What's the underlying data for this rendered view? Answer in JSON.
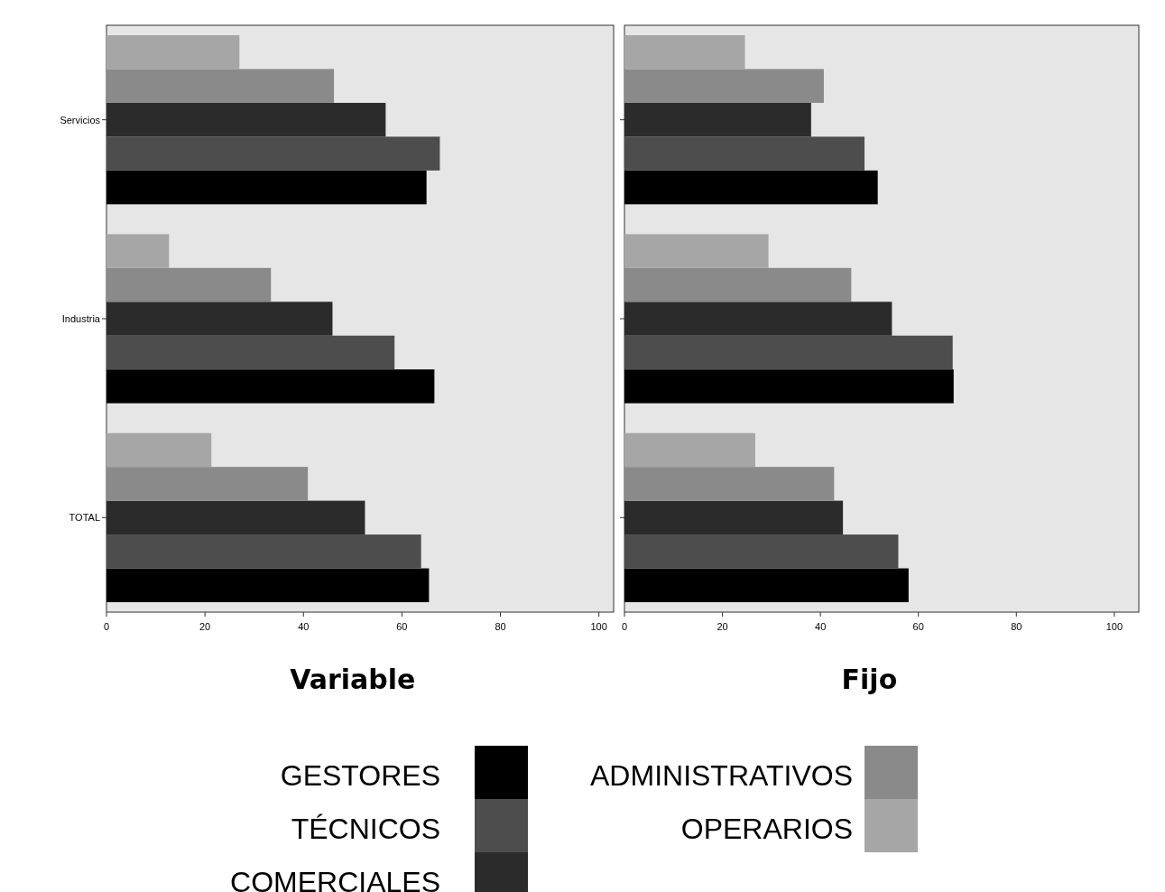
{
  "chart_data": [
    {
      "type": "bar",
      "orientation": "horizontal",
      "xlabel": "Variable",
      "categories": [
        "Servicios",
        "Industria",
        "TOTAL"
      ],
      "xlim": [
        0,
        103
      ],
      "xticks": [
        0,
        20,
        40,
        60,
        80,
        100
      ],
      "grid": false,
      "legend": "bottom",
      "series": [
        {
          "name": "GESTORES",
          "color": "#000000",
          "values": [
            65,
            66.6,
            65.5
          ]
        },
        {
          "name": "TÉCNICOS",
          "color": "#4d4d4d",
          "values": [
            67.7,
            58.5,
            63.9
          ]
        },
        {
          "name": "COMERCIALES",
          "color": "#2b2b2b",
          "values": [
            56.7,
            45.9,
            52.5
          ]
        },
        {
          "name": "ADMINISTRATIVOS",
          "color": "#8a8a8a",
          "values": [
            46.2,
            33.4,
            40.9
          ]
        },
        {
          "name": "OPERARIOS",
          "color": "#a6a6a6",
          "values": [
            27,
            12.7,
            21.3
          ]
        }
      ]
    },
    {
      "type": "bar",
      "orientation": "horizontal",
      "xlabel": "Fijo",
      "categories": [
        null,
        null,
        null
      ],
      "xlim": [
        0,
        105
      ],
      "xticks": [
        0,
        20,
        40,
        60,
        80,
        100
      ],
      "grid": false,
      "tick_labels": "x",
      "series": [
        {
          "color": "#000000",
          "values": [
            51.7,
            67.2,
            58
          ]
        },
        {
          "color": "#4d4d4d",
          "values": [
            49,
            67,
            55.9
          ]
        },
        {
          "color": "#2b2b2b",
          "values": [
            38.1,
            54.6,
            44.6
          ]
        },
        {
          "color": "#8a8a8a",
          "values": [
            40.7,
            46.3,
            42.8
          ]
        },
        {
          "color": "#a6a6a6",
          "values": [
            24.6,
            29.4,
            26.7
          ]
        }
      ]
    }
  ]
}
